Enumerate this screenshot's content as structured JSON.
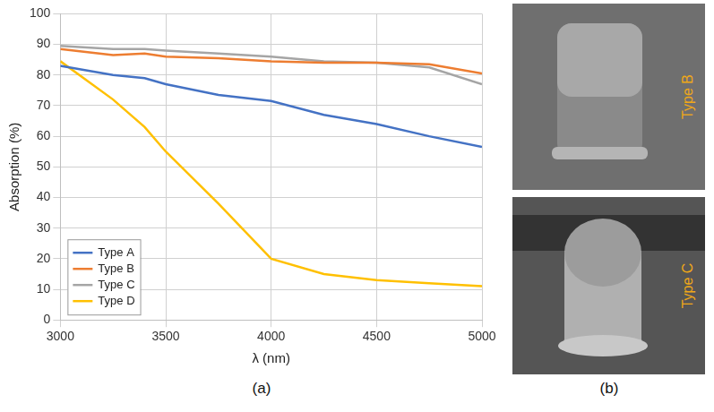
{
  "chart_data": {
    "type": "line",
    "x_label": "λ (nm)",
    "y_label": "Absorption (%)",
    "x": [
      3000,
      3250,
      3400,
      3500,
      3750,
      4000,
      4250,
      4500,
      4750,
      5000
    ],
    "series": [
      {
        "name": "Type A",
        "color": "#4472c4",
        "values": [
          83,
          80,
          79,
          77,
          73.5,
          71.5,
          67,
          64,
          60,
          56.5
        ]
      },
      {
        "name": "Type B",
        "color": "#ed7d31",
        "values": [
          88.5,
          86.5,
          87,
          86,
          85.5,
          84.5,
          84,
          84,
          83.5,
          80.5
        ]
      },
      {
        "name": "Type C",
        "color": "#a5a5a5",
        "values": [
          89.5,
          88.5,
          88.5,
          88,
          87,
          86,
          84.5,
          84,
          82.5,
          77
        ]
      },
      {
        "name": "Type D",
        "color": "#ffc000",
        "values": [
          84.5,
          72,
          63,
          55,
          38,
          20,
          15,
          13,
          12,
          11
        ]
      }
    ],
    "xlim": [
      3000,
      5000
    ],
    "xticks": [
      3000,
      3500,
      4000,
      4500,
      5000
    ],
    "ylim": [
      0,
      100
    ],
    "yticks": [
      0,
      10,
      20,
      30,
      40,
      50,
      60,
      70,
      80,
      90,
      100
    ],
    "grid": true,
    "legend": "lower left"
  },
  "panel_labels": [
    "(a)",
    "(b)"
  ],
  "image_labels": [
    "Type B",
    "Type C"
  ]
}
